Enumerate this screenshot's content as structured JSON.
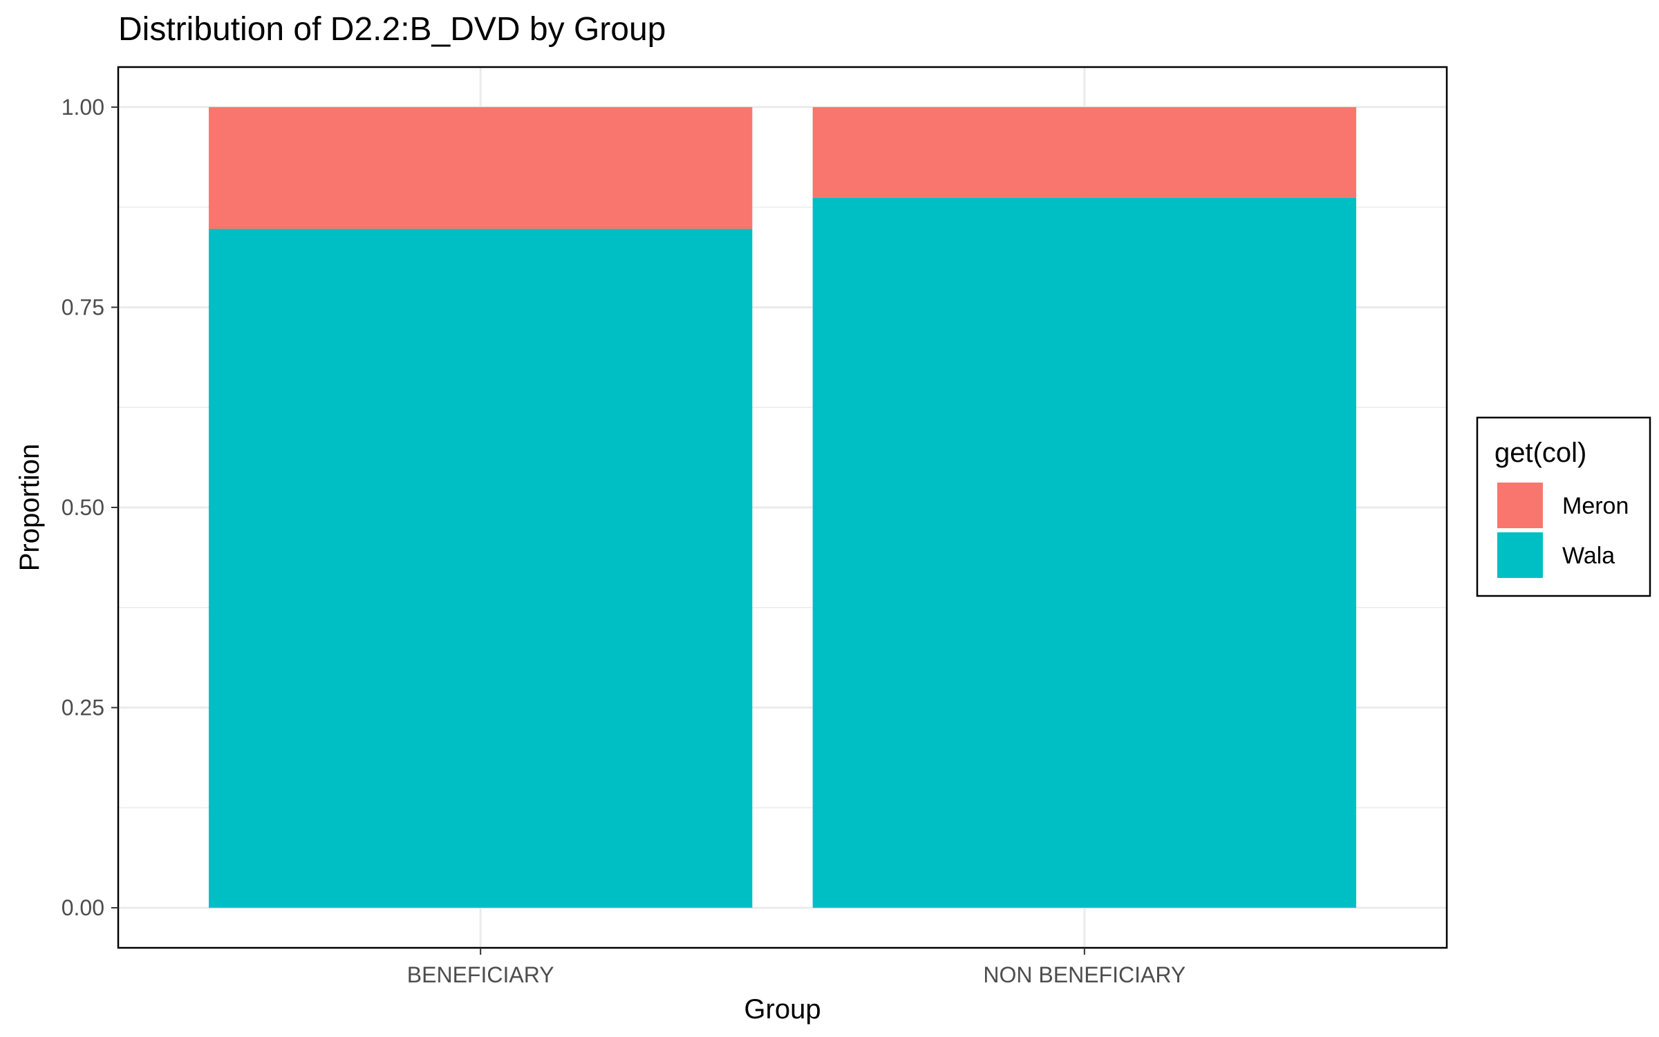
{
  "chart_data": {
    "type": "bar",
    "stacked": true,
    "title": "Distribution of D2.2:B_DVD by Group",
    "xlabel": "Group",
    "ylabel": "Proportion",
    "categories": [
      "BENEFICIARY",
      "NON BENEFICIARY"
    ],
    "series": [
      {
        "name": "Wala",
        "values": [
          0.848,
          0.887
        ],
        "color": "#00BFC4"
      },
      {
        "name": "Meron",
        "values": [
          0.152,
          0.113
        ],
        "color": "#F8766D"
      }
    ],
    "ylim": [
      -0.05,
      1.05
    ],
    "yticks": [
      0.0,
      0.25,
      0.5,
      0.75,
      1.0
    ],
    "ytick_labels": [
      "0.00",
      "0.25",
      "0.50",
      "0.75",
      "1.00"
    ],
    "grid": true,
    "legend": {
      "title": "get(col)",
      "position": "right",
      "entries": [
        {
          "label": "Meron",
          "color": "#F8766D"
        },
        {
          "label": "Wala",
          "color": "#00BFC4"
        }
      ]
    }
  }
}
